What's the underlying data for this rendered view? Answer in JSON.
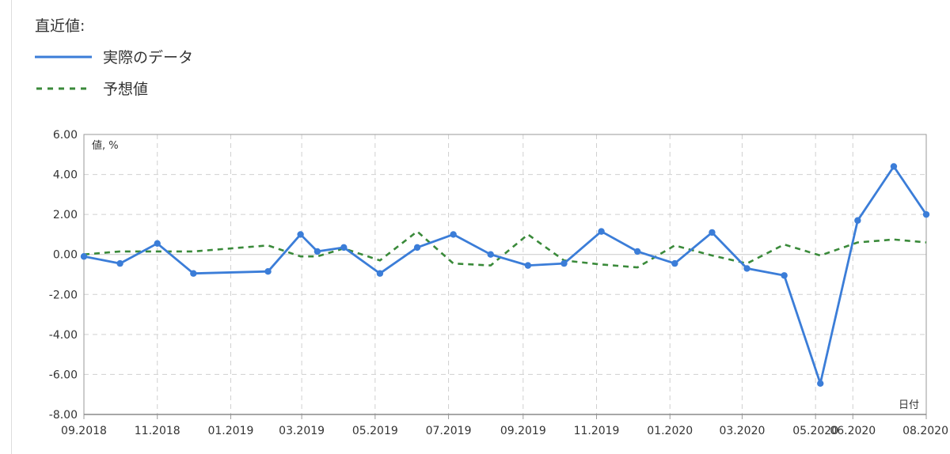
{
  "legend": {
    "title": "直近値:",
    "actual_label": "実際のデータ",
    "forecast_label": "予想値"
  },
  "colors": {
    "actual": "#3b7dd8",
    "forecast": "#3a8a3a",
    "grid": "#d0d0d0",
    "axis": "#9a9a9a",
    "zero_line": "#c8c8c8"
  },
  "chart_data": {
    "type": "line",
    "ylabel": "値, %",
    "xlabel": "日付",
    "ylim": [
      -8,
      6
    ],
    "yticks": [
      6,
      4,
      2,
      0,
      -2,
      -4,
      -6,
      -8
    ],
    "ytick_labels": [
      "6.00",
      "4.00",
      "2.00",
      "0.00",
      "-2.00",
      "-4.00",
      "-6.00",
      "-8.00"
    ],
    "xlim": [
      "2018-09-01",
      "2020-08-01"
    ],
    "xticks": [
      {
        "date": "2018-09-01",
        "label": "09.2018"
      },
      {
        "date": "2018-11-01",
        "label": "11.2018"
      },
      {
        "date": "2019-01-01",
        "label": "01.2019"
      },
      {
        "date": "2019-03-01",
        "label": "03.2019"
      },
      {
        "date": "2019-05-01",
        "label": "05.2019"
      },
      {
        "date": "2019-07-01",
        "label": "07.2019"
      },
      {
        "date": "2019-09-01",
        "label": "09.2019"
      },
      {
        "date": "2019-11-01",
        "label": "11.2019"
      },
      {
        "date": "2020-01-01",
        "label": "01.2020"
      },
      {
        "date": "2020-03-01",
        "label": "03.2020"
      },
      {
        "date": "2020-05-01",
        "label": "05.2020"
      },
      {
        "date": "2020-06-01",
        "label": "06.2020"
      },
      {
        "date": "2020-08-01",
        "label": "08.2020"
      }
    ],
    "grid": true,
    "series": [
      {
        "name": "実際のデータ",
        "style": "solid",
        "markers": true,
        "points": [
          {
            "x": "2018-09-01",
            "y": -0.1
          },
          {
            "x": "2018-10-01",
            "y": -0.45
          },
          {
            "x": "2018-11-01",
            "y": 0.55
          },
          {
            "x": "2018-12-01",
            "y": -0.95
          },
          {
            "x": "2019-02-01",
            "y": -0.85
          },
          {
            "x": "2019-02-28",
            "y": 1.0
          },
          {
            "x": "2019-03-14",
            "y": 0.15
          },
          {
            "x": "2019-04-05",
            "y": 0.35
          },
          {
            "x": "2019-05-05",
            "y": -0.95
          },
          {
            "x": "2019-06-05",
            "y": 0.35
          },
          {
            "x": "2019-07-05",
            "y": 1.0
          },
          {
            "x": "2019-08-05",
            "y": 0.0
          },
          {
            "x": "2019-09-05",
            "y": -0.55
          },
          {
            "x": "2019-10-05",
            "y": -0.45
          },
          {
            "x": "2019-11-05",
            "y": 1.15
          },
          {
            "x": "2019-12-05",
            "y": 0.15
          },
          {
            "x": "2020-01-05",
            "y": -0.45
          },
          {
            "x": "2020-02-05",
            "y": 1.1
          },
          {
            "x": "2020-03-05",
            "y": -0.7
          },
          {
            "x": "2020-04-05",
            "y": -1.05
          },
          {
            "x": "2020-05-05",
            "y": -6.45
          },
          {
            "x": "2020-06-05",
            "y": 1.7
          },
          {
            "x": "2020-07-05",
            "y": 4.4
          },
          {
            "x": "2020-08-01",
            "y": 2.0
          }
        ]
      },
      {
        "name": "予想値",
        "style": "dashed",
        "markers": false,
        "points": [
          {
            "x": "2018-09-01",
            "y": 0.0
          },
          {
            "x": "2018-10-01",
            "y": 0.15
          },
          {
            "x": "2018-11-01",
            "y": 0.15
          },
          {
            "x": "2018-12-01",
            "y": 0.15
          },
          {
            "x": "2019-02-01",
            "y": 0.45
          },
          {
            "x": "2019-02-28",
            "y": -0.1
          },
          {
            "x": "2019-03-14",
            "y": -0.1
          },
          {
            "x": "2019-04-05",
            "y": 0.3
          },
          {
            "x": "2019-05-05",
            "y": -0.3
          },
          {
            "x": "2019-06-05",
            "y": 1.15
          },
          {
            "x": "2019-07-05",
            "y": -0.45
          },
          {
            "x": "2019-08-05",
            "y": -0.55
          },
          {
            "x": "2019-09-05",
            "y": 1.0
          },
          {
            "x": "2019-10-05",
            "y": -0.3
          },
          {
            "x": "2019-11-05",
            "y": -0.5
          },
          {
            "x": "2019-12-05",
            "y": -0.65
          },
          {
            "x": "2020-01-05",
            "y": 0.45
          },
          {
            "x": "2020-02-05",
            "y": -0.05
          },
          {
            "x": "2020-03-05",
            "y": -0.45
          },
          {
            "x": "2020-04-05",
            "y": 0.5
          },
          {
            "x": "2020-05-05",
            "y": -0.05
          },
          {
            "x": "2020-06-05",
            "y": 0.6
          },
          {
            "x": "2020-07-05",
            "y": 0.75
          },
          {
            "x": "2020-08-01",
            "y": 0.6
          }
        ]
      }
    ]
  }
}
